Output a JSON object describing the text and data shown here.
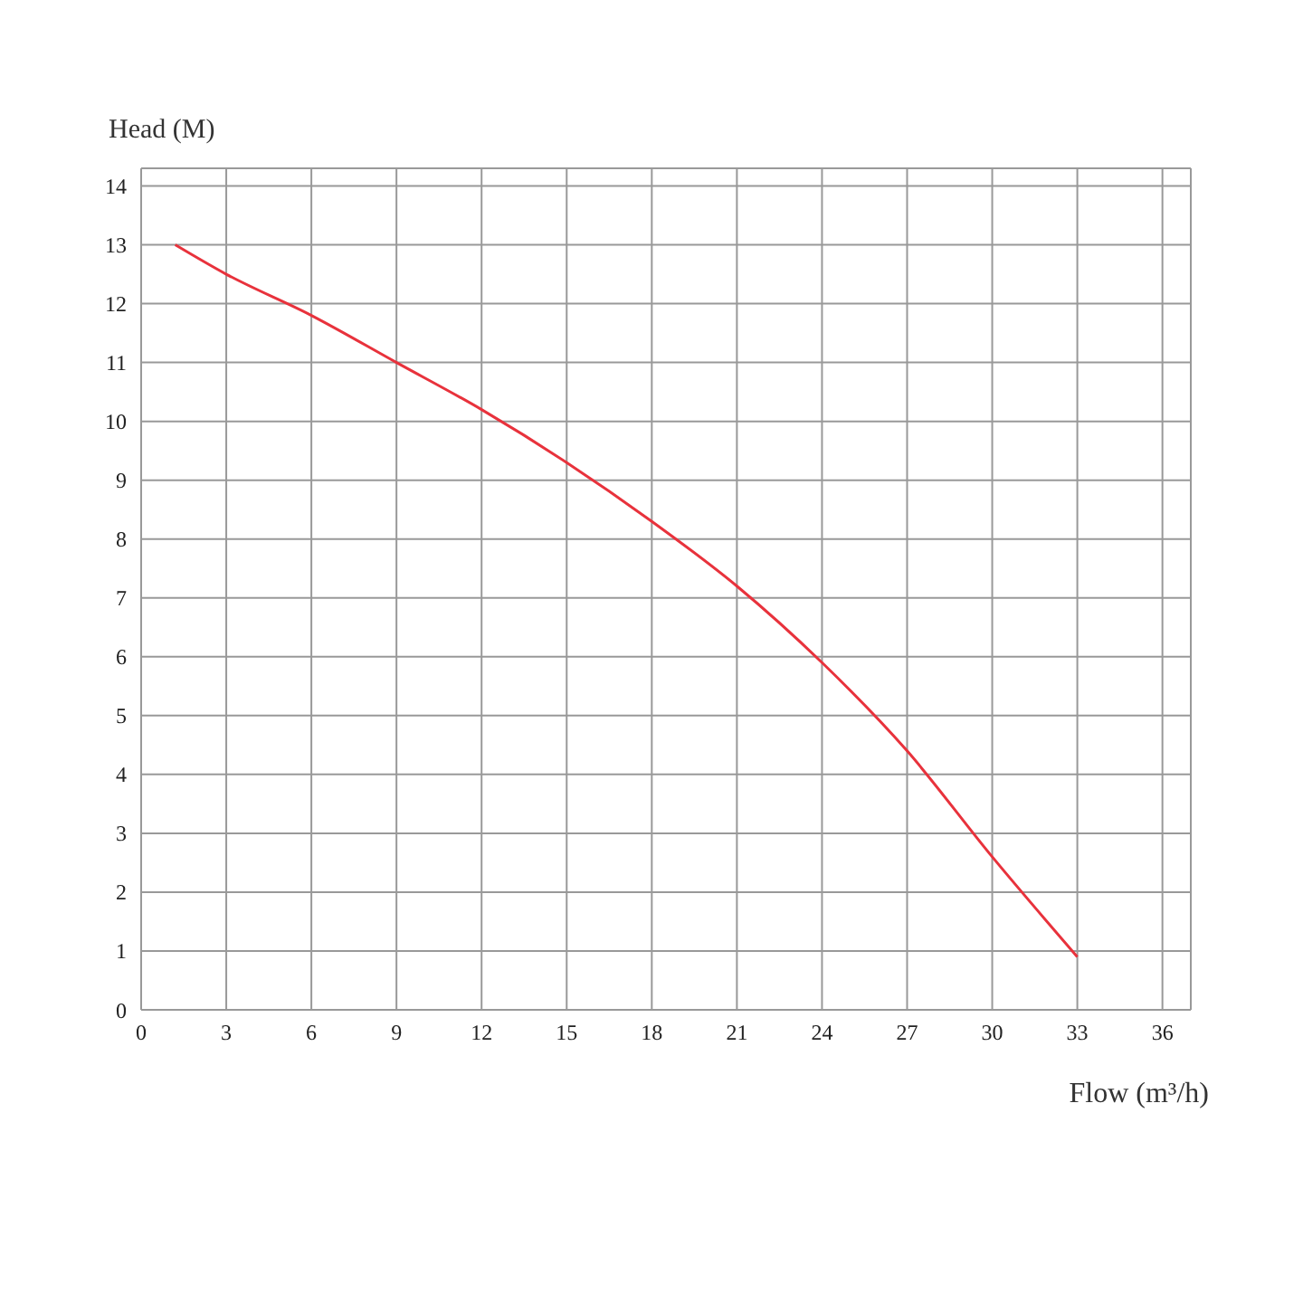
{
  "chart_data": {
    "type": "line",
    "xlabel": "Flow (m³/h)",
    "ylabel": "Head (M)",
    "x": [
      1.2,
      3,
      6,
      9,
      12,
      15,
      18,
      21,
      24,
      27,
      30,
      33
    ],
    "series": [
      {
        "color": "#e8323c",
        "values": [
          13,
          12.5,
          11.8,
          11,
          10.2,
          9.3,
          8.3,
          7.2,
          5.9,
          4.4,
          2.6,
          0.9
        ]
      }
    ],
    "xlim": [
      0,
      37
    ],
    "xticks": [
      0,
      3,
      6,
      9,
      12,
      15,
      18,
      21,
      24,
      27,
      30,
      33,
      36
    ],
    "ylim": [
      0,
      14.3
    ],
    "yticks": [
      0,
      1,
      2,
      3,
      4,
      5,
      6,
      7,
      8,
      9,
      10,
      11,
      12,
      13,
      14
    ],
    "grid": true,
    "marker": "none",
    "line_style": "solid",
    "legend": false
  }
}
